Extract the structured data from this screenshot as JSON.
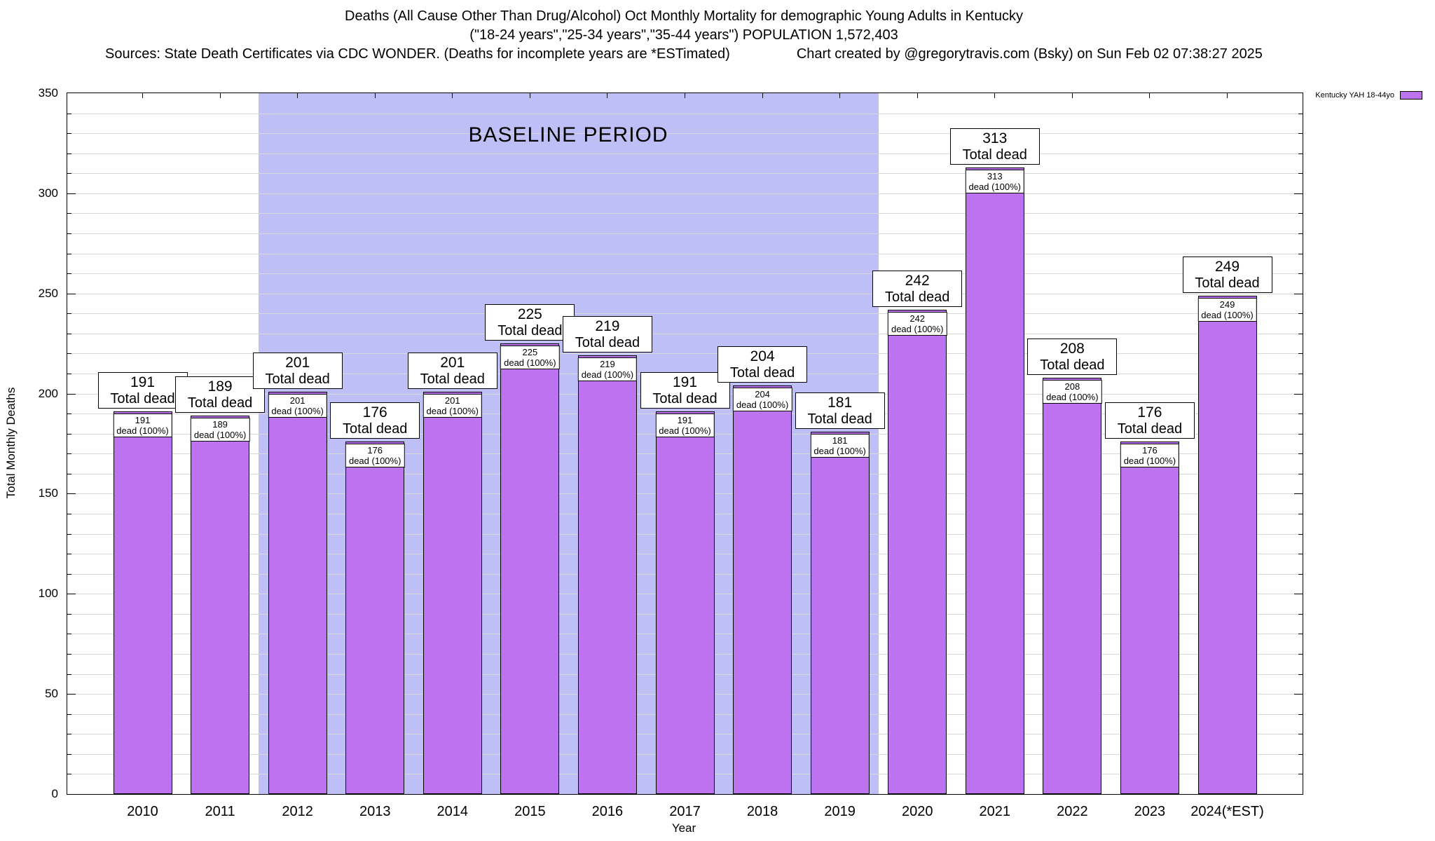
{
  "chart_data": {
    "type": "bar",
    "title": "Deaths (All Cause Other Than Drug/Alcohol) Oct Monthly Mortality for demographic Young Adults in Kentucky",
    "subtitle": "(\"18-24 years\",\"25-34 years\",\"35-44 years\") POPULATION 1,572,403",
    "sources_note": "Sources: State Death Certificates via CDC WONDER. (Deaths for incomplete years are *ESTimated)",
    "credit": "Chart created by @gregorytravis.com (Bsky) on Sun Feb 02 07:38:27 2025",
    "categories": [
      "2010",
      "2011",
      "2012",
      "2013",
      "2014",
      "2015",
      "2016",
      "2017",
      "2018",
      "2019",
      "2020",
      "2021",
      "2022",
      "2023",
      "2024(*EST)"
    ],
    "values": [
      191,
      189,
      201,
      176,
      201,
      225,
      219,
      191,
      204,
      181,
      242,
      313,
      208,
      176,
      249
    ],
    "xlabel": "Year",
    "ylabel": "Total Monthly Deaths",
    "ylim": [
      0,
      350
    ],
    "y_ticks": [
      0,
      50,
      100,
      150,
      200,
      250,
      300,
      350
    ],
    "grid_minor_step": 10,
    "grid_on": true,
    "bar_color": "#bd72ef",
    "baseline": {
      "label": "BASELINE PERIOD",
      "start_category": "2012",
      "end_category": "2019",
      "color": "#bfbff7"
    },
    "annotations": {
      "big_label_suffix": "Total dead",
      "small_label_suffix": "dead (100%)"
    },
    "legend": {
      "label": "Kentucky YAH 18-44yo",
      "position": "top-right"
    }
  }
}
